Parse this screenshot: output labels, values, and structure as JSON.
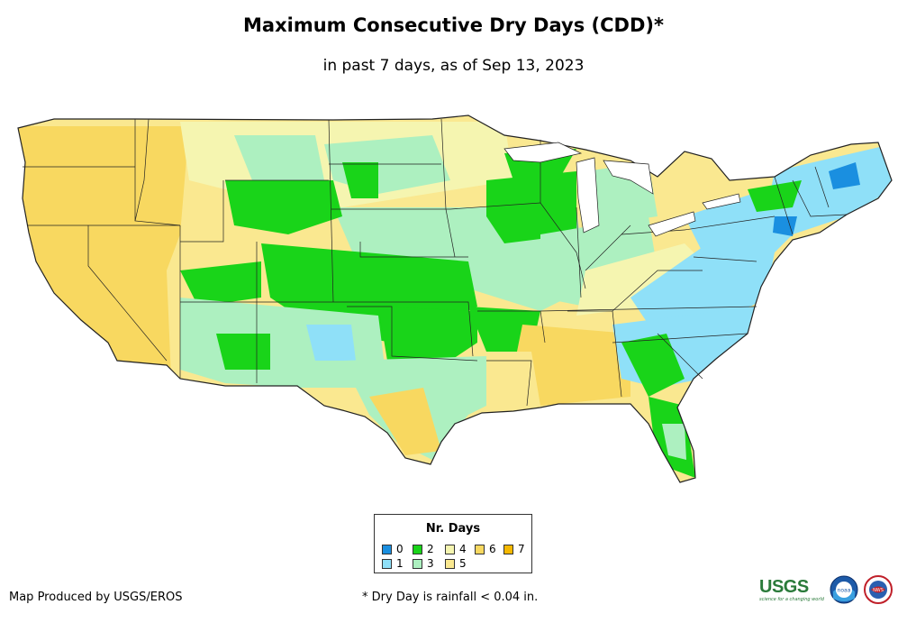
{
  "title": "Maximum Consecutive Dry Days (CDD)*",
  "subtitle": "in past 7 days, as of Sep 13, 2023",
  "legend": {
    "title": "Nr. Days",
    "items": [
      {
        "label": "0",
        "color": "#1a8fe0"
      },
      {
        "label": "1",
        "color": "#8fe0f8"
      },
      {
        "label": "2",
        "color": "#19d419"
      },
      {
        "label": "3",
        "color": "#adf0c0"
      },
      {
        "label": "4",
        "color": "#f5f5b0"
      },
      {
        "label": "5",
        "color": "#fae890"
      },
      {
        "label": "6",
        "color": "#f8d860"
      },
      {
        "label": "7",
        "color": "#f5b800"
      }
    ]
  },
  "footer": {
    "producer": "Map Produced by USGS/EROS",
    "note": "* Dry Day is rainfall < 0.04 in."
  },
  "logos": {
    "usgs": "USGS",
    "usgs_tagline": "science for a changing world",
    "noaa": "noaa",
    "nws": "NWS"
  }
}
